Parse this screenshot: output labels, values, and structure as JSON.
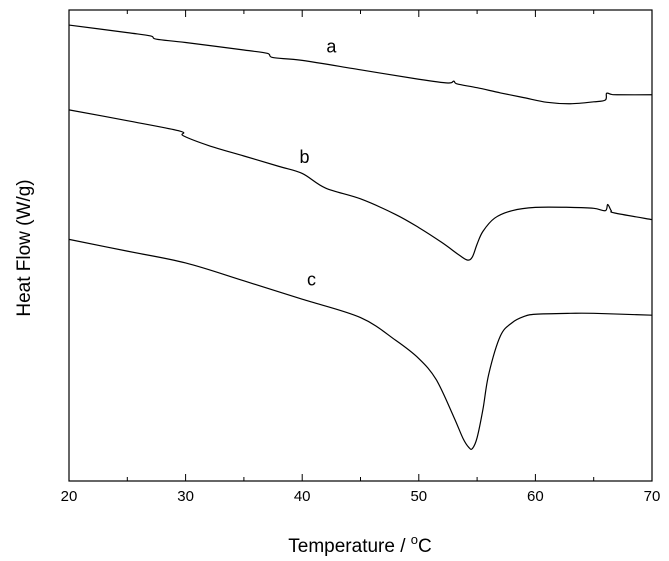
{
  "chart_data": {
    "type": "line",
    "title": "",
    "xlabel": "Temperature / °C",
    "xlabel_parts": {
      "prefix": "Temperature / ",
      "superscript": "o",
      "suffix": "C"
    },
    "ylabel": "Heat Flow (W/g)",
    "xlim": [
      20,
      70
    ],
    "ylim": [
      0,
      100
    ],
    "y_ticks_labeled": false,
    "grid": false,
    "legend": "none",
    "x_ticks": [
      "20",
      "30",
      "40",
      "50",
      "60",
      "70"
    ],
    "line_color": "#000000",
    "series": [
      {
        "name": "a",
        "label": "a",
        "label_at": [
          42.5,
          91
        ],
        "x": [
          20,
          25,
          27,
          27.5,
          30,
          35,
          37,
          37.5,
          40,
          45,
          50,
          52.5,
          53,
          53.3,
          55,
          57,
          59,
          61,
          63,
          65,
          66,
          66.1,
          66.5,
          67,
          70
        ],
        "y": [
          96.8,
          95.2,
          94.5,
          93.8,
          93.1,
          91.5,
          90.8,
          89.9,
          89.3,
          87.3,
          85.3,
          84.5,
          84.9,
          84.3,
          83.5,
          82.4,
          81.4,
          80.4,
          80.1,
          80.5,
          80.9,
          82.3,
          82.1,
          82.0,
          82.0
        ]
      },
      {
        "name": "b",
        "label": "b",
        "label_at": [
          40.2,
          67.5
        ],
        "x": [
          20,
          25,
          29.5,
          29.8,
          32,
          35,
          38,
          40,
          42,
          45,
          48,
          50,
          52,
          53.5,
          54.2,
          54.6,
          55,
          55.5,
          56.5,
          58,
          60,
          63,
          65,
          66,
          66.2,
          66.5,
          66.8,
          70
        ],
        "y": [
          78.8,
          76.5,
          74.3,
          73.3,
          71.2,
          69.0,
          66.8,
          65.3,
          62.2,
          59.9,
          56.6,
          53.8,
          50.6,
          47.9,
          46.9,
          47.6,
          50.3,
          53.0,
          55.8,
          57.4,
          58.1,
          58.1,
          57.9,
          57.4,
          58.7,
          57.4,
          56.9,
          55.5
        ]
      },
      {
        "name": "c",
        "label": "c",
        "label_at": [
          40.8,
          41.5
        ],
        "x": [
          20,
          25,
          30,
          35,
          40,
          45,
          48,
          50,
          51.5,
          53,
          53.8,
          54.3,
          54.6,
          55,
          55.5,
          56,
          57,
          58,
          59,
          60,
          63,
          65,
          70
        ],
        "y": [
          51.3,
          48.8,
          46.3,
          42.5,
          38.6,
          34.7,
          29.9,
          26.0,
          21.5,
          13.6,
          9.0,
          7.1,
          6.9,
          9.2,
          15.2,
          22.7,
          30.8,
          33.6,
          34.9,
          35.4,
          35.6,
          35.6,
          35.2
        ]
      }
    ]
  }
}
